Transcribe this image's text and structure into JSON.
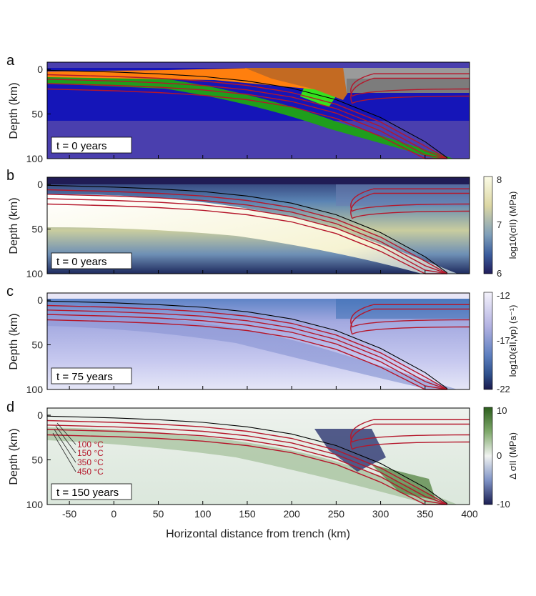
{
  "chart_data": {
    "type": "heatmap",
    "xlabel": "Horizontal distance from trench (km)",
    "ylabel": "Depth (km)",
    "xlim": [
      -75,
      400
    ],
    "ylim": [
      100,
      -8
    ],
    "x_ticks": [
      "-50",
      "0",
      "50",
      "100",
      "150",
      "200",
      "250",
      "300",
      "350",
      "400"
    ],
    "x_tick_values": [
      -50,
      0,
      50,
      100,
      150,
      200,
      250,
      300,
      350,
      400
    ],
    "y_ticks": [
      "0",
      "50",
      "100"
    ],
    "y_tick_values": [
      0,
      50,
      100
    ],
    "isotherms": [
      "100 °C",
      "150 °C",
      "350 °C",
      "450 °C"
    ],
    "slab_top_geometry_km": {
      "x": [
        -75,
        0,
        50,
        100,
        150,
        200,
        250,
        300,
        350,
        375
      ],
      "depth": [
        2,
        4,
        6,
        9,
        14,
        22,
        35,
        55,
        82,
        100
      ]
    },
    "panels": [
      {
        "letter": "a",
        "time_label": "t = 0 years",
        "field": "material phases",
        "colorbar": null
      },
      {
        "letter": "b",
        "time_label": "t = 0 years",
        "field": "second invariant of stress",
        "colorbar": {
          "label": "log10(σII) (MPa)",
          "ticks": [
            "8",
            "7",
            "6"
          ],
          "range": [
            6,
            8
          ]
        }
      },
      {
        "letter": "c",
        "time_label": "t = 75 years",
        "field": "viscoplastic strain rate",
        "colorbar": {
          "label": "log10(ε̇II,vp) (s⁻¹)",
          "ticks": [
            "-12",
            "-17",
            "-22"
          ],
          "range": [
            -22,
            -12
          ]
        }
      },
      {
        "letter": "d",
        "time_label": "t = 150 years",
        "field": "stress change",
        "colorbar": {
          "label": "Δ σII (MPa)",
          "ticks": [
            "10",
            "0",
            "-10"
          ],
          "range": [
            -10,
            10
          ]
        }
      }
    ]
  },
  "colors": {
    "isotherm": "#b5172b",
    "sediment_orange": "#ff7f0e",
    "crust_brown": "#c36a22",
    "crust_green": "#1f9e1c",
    "light_green": "#36e21e",
    "mantle_blue": "#1515b8",
    "deep_purple": "#4a3fae",
    "grey": "#9a9a9a",
    "cream": "#f3efc8",
    "navy": "#1e1b57"
  }
}
